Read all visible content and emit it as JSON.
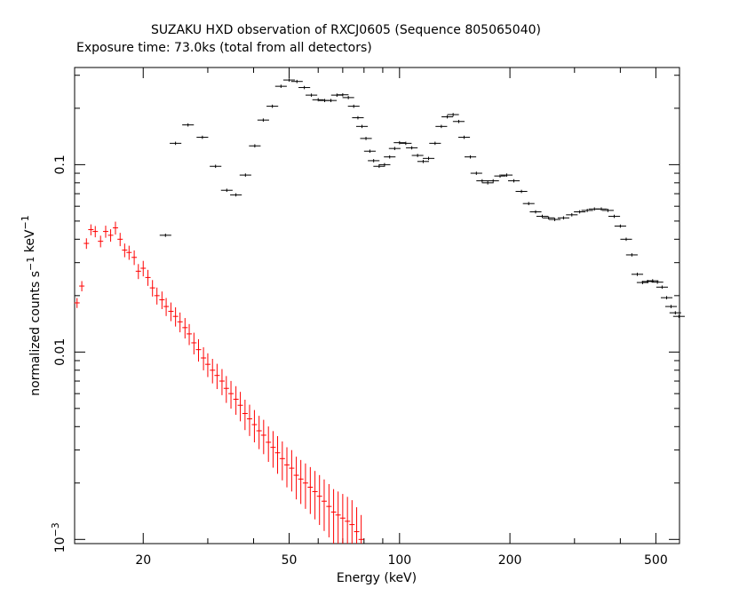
{
  "chart_data": {
    "type": "scatter",
    "title": "SUZAKU HXD observation of RXCJ0605 (Sequence 805065040)",
    "subtitle": "Exposure time: 73.0ks (total from all detectors)",
    "xlabel": "Energy (keV)",
    "ylabel": "normalized counts s⁻¹ keV⁻¹",
    "xscale": "log",
    "yscale": "log",
    "xlim": [
      13,
      580
    ],
    "ylim": [
      0.00095,
      0.33
    ],
    "x_ticks": [
      {
        "value": 20,
        "label": "20"
      },
      {
        "value": 50,
        "label": "50"
      },
      {
        "value": 100,
        "label": "100"
      },
      {
        "value": 200,
        "label": "200"
      },
      {
        "value": 500,
        "label": "500"
      }
    ],
    "y_ticks": [
      {
        "value": 0.1,
        "label": "0.1"
      },
      {
        "value": 0.01,
        "label": "0.01"
      }
    ],
    "y_tick_exp": {
      "value": 0.001,
      "base": "10",
      "exp": "−3"
    },
    "colors": {
      "pin": "#ff0000",
      "gso": "#000000"
    },
    "series": [
      {
        "color": "#ff0000",
        "points": [
          [
            13.2,
            0.0183
          ],
          [
            13.6,
            0.0225
          ],
          [
            14.0,
            0.038
          ],
          [
            14.4,
            0.045
          ],
          [
            14.8,
            0.044
          ],
          [
            15.3,
            0.039
          ],
          [
            15.8,
            0.044
          ],
          [
            16.3,
            0.042
          ],
          [
            16.8,
            0.046
          ],
          [
            17.3,
            0.04
          ],
          [
            17.8,
            0.035
          ],
          [
            18.3,
            0.034
          ],
          [
            18.9,
            0.032
          ],
          [
            19.4,
            0.027
          ],
          [
            20.0,
            0.028
          ],
          [
            20.6,
            0.025
          ],
          [
            21.2,
            0.022
          ],
          [
            21.8,
            0.02
          ],
          [
            22.5,
            0.019
          ],
          [
            23.1,
            0.0175
          ],
          [
            23.8,
            0.0165
          ],
          [
            24.5,
            0.0155
          ],
          [
            25.2,
            0.0145
          ],
          [
            26.0,
            0.0135
          ],
          [
            26.7,
            0.0125
          ],
          [
            27.5,
            0.0112
          ],
          [
            28.3,
            0.0103
          ],
          [
            29.2,
            0.0093
          ],
          [
            30.0,
            0.0086
          ],
          [
            30.9,
            0.008
          ],
          [
            31.8,
            0.0075
          ],
          [
            32.8,
            0.007
          ],
          [
            33.7,
            0.0064
          ],
          [
            34.7,
            0.006
          ],
          [
            35.8,
            0.0056
          ],
          [
            36.8,
            0.0052
          ],
          [
            37.9,
            0.0047
          ],
          [
            39.0,
            0.0044
          ],
          [
            40.2,
            0.0041
          ],
          [
            41.4,
            0.0038
          ],
          [
            42.6,
            0.0036
          ],
          [
            43.9,
            0.0033
          ],
          [
            45.2,
            0.0031
          ],
          [
            46.5,
            0.0029
          ],
          [
            47.9,
            0.0027
          ],
          [
            49.3,
            0.0025
          ],
          [
            50.8,
            0.0024
          ],
          [
            52.3,
            0.0022
          ],
          [
            53.8,
            0.0021
          ],
          [
            55.4,
            0.002
          ],
          [
            57.1,
            0.0019
          ],
          [
            58.8,
            0.0018
          ],
          [
            60.5,
            0.0017
          ],
          [
            62.3,
            0.0016
          ],
          [
            64.2,
            0.0015
          ],
          [
            66.1,
            0.0014
          ],
          [
            68.0,
            0.00135
          ],
          [
            70.0,
            0.0013
          ],
          [
            72.1,
            0.00125
          ],
          [
            74.2,
            0.0012
          ],
          [
            76.4,
            0.0011
          ],
          [
            78.6,
            0.001
          ]
        ]
      },
      {
        "color": "#000000",
        "points": [
          [
            23.0,
            0.042
          ],
          [
            24.5,
            0.13
          ],
          [
            26.5,
            0.163
          ],
          [
            29.0,
            0.14
          ],
          [
            31.5,
            0.098
          ],
          [
            33.8,
            0.073
          ],
          [
            35.8,
            0.069
          ],
          [
            38.0,
            0.088
          ],
          [
            40.3,
            0.126
          ],
          [
            42.5,
            0.173
          ],
          [
            45.0,
            0.205
          ],
          [
            47.5,
            0.262
          ],
          [
            50.0,
            0.283
          ],
          [
            52.5,
            0.278
          ],
          [
            55.0,
            0.258
          ],
          [
            57.5,
            0.235
          ],
          [
            60.0,
            0.222
          ],
          [
            62.5,
            0.22
          ],
          [
            65.0,
            0.22
          ],
          [
            67.5,
            0.235
          ],
          [
            70.0,
            0.236
          ],
          [
            72.5,
            0.228
          ],
          [
            75.0,
            0.205
          ],
          [
            77.0,
            0.178
          ],
          [
            79.0,
            0.16
          ],
          [
            81.0,
            0.138
          ],
          [
            83.0,
            0.118
          ],
          [
            85.0,
            0.105
          ],
          [
            88.0,
            0.098
          ],
          [
            91.0,
            0.1
          ],
          [
            94.0,
            0.11
          ],
          [
            97.0,
            0.122
          ],
          [
            100.0,
            0.131
          ],
          [
            104.0,
            0.13
          ],
          [
            108.0,
            0.123
          ],
          [
            112.0,
            0.112
          ],
          [
            116.0,
            0.104
          ],
          [
            120.0,
            0.108
          ],
          [
            125.0,
            0.13
          ],
          [
            130.0,
            0.16
          ],
          [
            135.0,
            0.18
          ],
          [
            140.0,
            0.185
          ],
          [
            145.0,
            0.17
          ],
          [
            150.0,
            0.14
          ],
          [
            156.0,
            0.11
          ],
          [
            162.0,
            0.09
          ],
          [
            168.0,
            0.082
          ],
          [
            174.0,
            0.08
          ],
          [
            180.0,
            0.082
          ],
          [
            188.0,
            0.087
          ],
          [
            196.0,
            0.088
          ],
          [
            205.0,
            0.082
          ],
          [
            215.0,
            0.072
          ],
          [
            225.0,
            0.062
          ],
          [
            235.0,
            0.056
          ],
          [
            245.0,
            0.053
          ],
          [
            255.0,
            0.052
          ],
          [
            265.0,
            0.051
          ],
          [
            280.0,
            0.052
          ],
          [
            295.0,
            0.054
          ],
          [
            310.0,
            0.056
          ],
          [
            325.0,
            0.057
          ],
          [
            340.0,
            0.058
          ],
          [
            355.0,
            0.058
          ],
          [
            370.0,
            0.057
          ],
          [
            385.0,
            0.053
          ],
          [
            400.0,
            0.047
          ],
          [
            415.0,
            0.04
          ],
          [
            430.0,
            0.033
          ],
          [
            445.0,
            0.026
          ],
          [
            460.0,
            0.0235
          ],
          [
            475.0,
            0.0238
          ],
          [
            490.0,
            0.024
          ],
          [
            505.0,
            0.0236
          ],
          [
            520.0,
            0.0222
          ],
          [
            535.0,
            0.0195
          ],
          [
            550.0,
            0.0175
          ],
          [
            565.0,
            0.0162
          ],
          [
            578.0,
            0.0155
          ]
        ]
      }
    ]
  }
}
